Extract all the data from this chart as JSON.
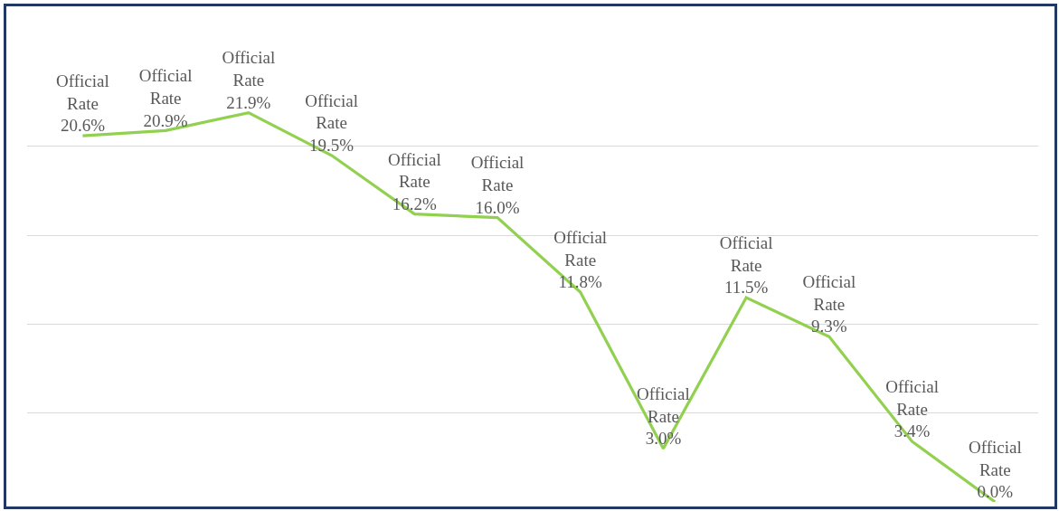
{
  "chart_data": {
    "type": "line",
    "categories": [
      null,
      null,
      null,
      null,
      null,
      null,
      null,
      null,
      null,
      null,
      null,
      null
    ],
    "series": [
      {
        "name": "Official Rate",
        "color": "#92d050",
        "values": [
          20.6,
          20.9,
          21.9,
          19.5,
          16.2,
          16.0,
          11.8,
          3.0,
          11.5,
          9.3,
          3.4,
          0.0
        ],
        "value_labels": [
          "20.6%",
          "20.9%",
          "21.9%",
          "19.5%",
          "16.2%",
          "16.0%",
          "11.8%",
          "3.0%",
          "11.5%",
          "9.3%",
          "3.4%",
          "0.0%"
        ]
      }
    ],
    "tick_labels": false,
    "grid": "y",
    "legend": false,
    "marker": "none",
    "line_style": "solid"
  }
}
